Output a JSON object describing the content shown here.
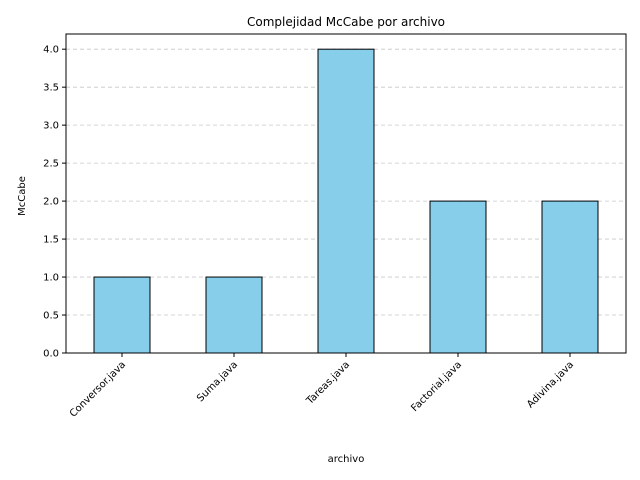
{
  "chart_data": {
    "type": "bar",
    "title": "Complejidad McCabe por archivo",
    "xlabel": "archivo",
    "ylabel": "McCabe",
    "categories": [
      "Conversor.java",
      "Suma.java",
      "Tareas.java",
      "Factorial.java",
      "Adivina.java"
    ],
    "values": [
      1.0,
      1.0,
      4.0,
      2.0,
      2.0
    ],
    "ylim": [
      0,
      4.2
    ],
    "yticks": [
      "0.0",
      "0.5",
      "1.0",
      "1.5",
      "2.0",
      "2.5",
      "3.0",
      "3.5",
      "4.0"
    ],
    "grid": "y-dashed",
    "colors": {
      "bar_fill": "#87ceeb",
      "bar_edge": "#000000",
      "grid": "#c8c8c8"
    }
  }
}
